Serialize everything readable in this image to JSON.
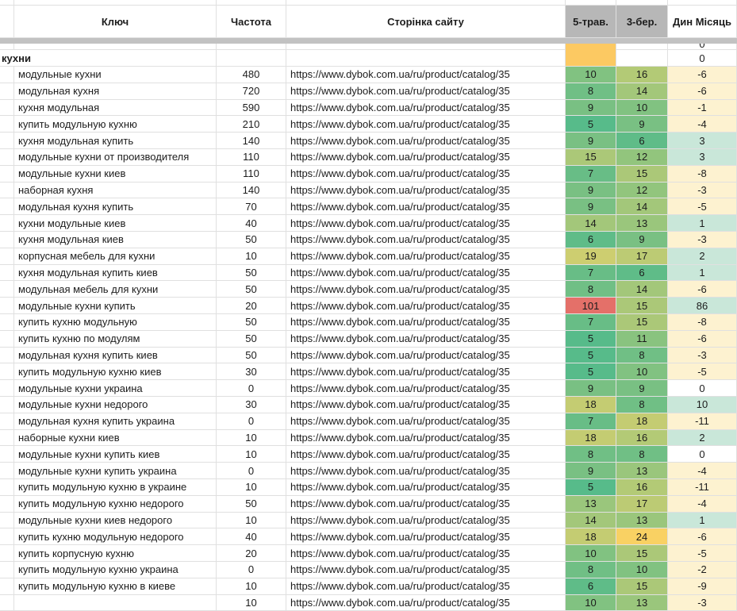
{
  "colors": {
    "header_gray": "#b7b7b7",
    "orange_highlight": "#fcc962",
    "negative_bg": "#fdf2d0",
    "positive_bg": "#c9e7d9",
    "zero_bg": "#ffffff",
    "red_alert": "#e47069",
    "grid_line": "#e0e0e0"
  },
  "table": {
    "columns": {
      "key": "Ключ",
      "freq": "Частота",
      "url": "Сторінка сайту",
      "may": "5-трав.",
      "mar": "3-бер.",
      "dyn": "Дин Місяць"
    },
    "pre_row": {
      "dyn": "0",
      "may_bg": "#fcc962"
    },
    "group_row": {
      "label": "кухни",
      "dyn": "0",
      "may_bg": "#fcc962",
      "dyn_bg": "#ffffff"
    },
    "rows": [
      {
        "key": "модульные кухни",
        "freq": "480",
        "url": "https://www.dybok.com.ua/ru/product/catalog/35",
        "may": "10",
        "mar": "16",
        "dyn": "-6",
        "may_bg": "#81c281",
        "mar_bg": "#b3ca76",
        "dyn_bg": "#fdf2d0"
      },
      {
        "key": "модульная кухня",
        "freq": "720",
        "url": "https://www.dybok.com.ua/ru/product/catalog/35",
        "may": "8",
        "mar": "14",
        "dyn": "-6",
        "may_bg": "#70bf85",
        "mar_bg": "#a3c77a",
        "dyn_bg": "#fdf2d0"
      },
      {
        "key": "кухня модульная",
        "freq": "590",
        "url": "https://www.dybok.com.ua/ru/product/catalog/35",
        "may": "9",
        "mar": "10",
        "dyn": "-1",
        "may_bg": "#79c083",
        "mar_bg": "#81c281",
        "dyn_bg": "#fdf2d0"
      },
      {
        "key": "купить модульную кухню",
        "freq": "210",
        "url": "https://www.dybok.com.ua/ru/product/catalog/35",
        "may": "5",
        "mar": "9",
        "dyn": "-4",
        "may_bg": "#57bb8a",
        "mar_bg": "#79c083",
        "dyn_bg": "#fdf2d0"
      },
      {
        "key": "кухня модульная купить",
        "freq": "140",
        "url": "https://www.dybok.com.ua/ru/product/catalog/35",
        "may": "9",
        "mar": "6",
        "dyn": "3",
        "may_bg": "#79c083",
        "mar_bg": "#5fbc88",
        "dyn_bg": "#c9e7d9"
      },
      {
        "key": "модульные кухни от производителя",
        "freq": "110",
        "url": "https://www.dybok.com.ua/ru/product/catalog/35",
        "may": "15",
        "mar": "12",
        "dyn": "3",
        "may_bg": "#abc878",
        "mar_bg": "#92c57d",
        "dyn_bg": "#c9e7d9"
      },
      {
        "key": "модульные кухни киев",
        "freq": "110",
        "url": "https://www.dybok.com.ua/ru/product/catalog/35",
        "may": "7",
        "mar": "15",
        "dyn": "-8",
        "may_bg": "#68bd86",
        "mar_bg": "#abc878",
        "dyn_bg": "#fdf2d0"
      },
      {
        "key": "наборная кухня",
        "freq": "140",
        "url": "https://www.dybok.com.ua/ru/product/catalog/35",
        "may": "9",
        "mar": "12",
        "dyn": "-3",
        "may_bg": "#79c083",
        "mar_bg": "#92c57d",
        "dyn_bg": "#fdf2d0"
      },
      {
        "key": "модульная кухня купить",
        "freq": "70",
        "url": "https://www.dybok.com.ua/ru/product/catalog/35",
        "may": "9",
        "mar": "14",
        "dyn": "-5",
        "may_bg": "#79c083",
        "mar_bg": "#a3c77a",
        "dyn_bg": "#fdf2d0"
      },
      {
        "key": "кухни модульные киев",
        "freq": "40",
        "url": "https://www.dybok.com.ua/ru/product/catalog/35",
        "may": "14",
        "mar": "13",
        "dyn": "1",
        "may_bg": "#a3c77a",
        "mar_bg": "#9ac67c",
        "dyn_bg": "#c9e7d9"
      },
      {
        "key": "кухня модульная киев",
        "freq": "50",
        "url": "https://www.dybok.com.ua/ru/product/catalog/35",
        "may": "6",
        "mar": "9",
        "dyn": "-3",
        "may_bg": "#5fbc88",
        "mar_bg": "#79c083",
        "dyn_bg": "#fdf2d0"
      },
      {
        "key": "корпусная мебель для кухни",
        "freq": "10",
        "url": "https://www.dybok.com.ua/ru/product/catalog/35",
        "may": "19",
        "mar": "17",
        "dyn": "2",
        "may_bg": "#cdce70",
        "mar_bg": "#bccb74",
        "dyn_bg": "#c9e7d9"
      },
      {
        "key": "кухня модульная купить киев",
        "freq": "50",
        "url": "https://www.dybok.com.ua/ru/product/catalog/35",
        "may": "7",
        "mar": "6",
        "dyn": "1",
        "may_bg": "#68bd86",
        "mar_bg": "#5fbc88",
        "dyn_bg": "#c9e7d9"
      },
      {
        "key": "модульная мебель для кухни",
        "freq": "50",
        "url": "https://www.dybok.com.ua/ru/product/catalog/35",
        "may": "8",
        "mar": "14",
        "dyn": "-6",
        "may_bg": "#70bf85",
        "mar_bg": "#a3c77a",
        "dyn_bg": "#fdf2d0"
      },
      {
        "key": "модульные кухни купить",
        "freq": "20",
        "url": "https://www.dybok.com.ua/ru/product/catalog/35",
        "may": "101",
        "mar": "15",
        "dyn": "86",
        "may_bg": "#e47069",
        "mar_bg": "#abc878",
        "dyn_bg": "#c9e7d9"
      },
      {
        "key": "купить кухню модульную",
        "freq": "50",
        "url": "https://www.dybok.com.ua/ru/product/catalog/35",
        "may": "7",
        "mar": "15",
        "dyn": "-8",
        "may_bg": "#68bd86",
        "mar_bg": "#abc878",
        "dyn_bg": "#fdf2d0"
      },
      {
        "key": "купить кухню по модулям",
        "freq": "50",
        "url": "https://www.dybok.com.ua/ru/product/catalog/35",
        "may": "5",
        "mar": "11",
        "dyn": "-6",
        "may_bg": "#57bb8a",
        "mar_bg": "#89c37f",
        "dyn_bg": "#fdf2d0"
      },
      {
        "key": "модульная кухня купить киев",
        "freq": "50",
        "url": "https://www.dybok.com.ua/ru/product/catalog/35",
        "may": "5",
        "mar": "8",
        "dyn": "-3",
        "may_bg": "#57bb8a",
        "mar_bg": "#70bf85",
        "dyn_bg": "#fdf2d0"
      },
      {
        "key": "купить модульную кухню киев",
        "freq": "30",
        "url": "https://www.dybok.com.ua/ru/product/catalog/35",
        "may": "5",
        "mar": "10",
        "dyn": "-5",
        "may_bg": "#57bb8a",
        "mar_bg": "#81c281",
        "dyn_bg": "#fdf2d0"
      },
      {
        "key": "модульные кухни украина",
        "freq": "0",
        "url": "https://www.dybok.com.ua/ru/product/catalog/35",
        "may": "9",
        "mar": "9",
        "dyn": "0",
        "may_bg": "#79c083",
        "mar_bg": "#79c083",
        "dyn_bg": "#ffffff"
      },
      {
        "key": "модульные кухни недорого",
        "freq": "30",
        "url": "https://www.dybok.com.ua/ru/product/catalog/35",
        "may": "18",
        "mar": "8",
        "dyn": "10",
        "may_bg": "#c4cc72",
        "mar_bg": "#70bf85",
        "dyn_bg": "#c9e7d9"
      },
      {
        "key": "модульная кухня купить украина",
        "freq": "0",
        "url": "https://www.dybok.com.ua/ru/product/catalog/35",
        "may": "7",
        "mar": "18",
        "dyn": "-11",
        "may_bg": "#68bd86",
        "mar_bg": "#c4cc72",
        "dyn_bg": "#fdf2d0"
      },
      {
        "key": "наборные кухни киев",
        "freq": "10",
        "url": "https://www.dybok.com.ua/ru/product/catalog/35",
        "may": "18",
        "mar": "16",
        "dyn": "2",
        "may_bg": "#c4cc72",
        "mar_bg": "#b3ca76",
        "dyn_bg": "#c9e7d9"
      },
      {
        "key": "модульные кухни купить киев",
        "freq": "10",
        "url": "https://www.dybok.com.ua/ru/product/catalog/35",
        "may": "8",
        "mar": "8",
        "dyn": "0",
        "may_bg": "#70bf85",
        "mar_bg": "#70bf85",
        "dyn_bg": "#ffffff"
      },
      {
        "key": "модульные кухни купить украина",
        "freq": "0",
        "url": "https://www.dybok.com.ua/ru/product/catalog/35",
        "may": "9",
        "mar": "13",
        "dyn": "-4",
        "may_bg": "#79c083",
        "mar_bg": "#9ac67c",
        "dyn_bg": "#fdf2d0"
      },
      {
        "key": "купить модульную кухню в украине",
        "freq": "10",
        "url": "https://www.dybok.com.ua/ru/product/catalog/35",
        "may": "5",
        "mar": "16",
        "dyn": "-11",
        "may_bg": "#57bb8a",
        "mar_bg": "#b3ca76",
        "dyn_bg": "#fdf2d0"
      },
      {
        "key": "купить модульную кухню недорого",
        "freq": "50",
        "url": "https://www.dybok.com.ua/ru/product/catalog/35",
        "may": "13",
        "mar": "17",
        "dyn": "-4",
        "may_bg": "#9ac67c",
        "mar_bg": "#bccb74",
        "dyn_bg": "#fdf2d0"
      },
      {
        "key": "модульные кухни киев недорого",
        "freq": "10",
        "url": "https://www.dybok.com.ua/ru/product/catalog/35",
        "may": "14",
        "mar": "13",
        "dyn": "1",
        "may_bg": "#a3c77a",
        "mar_bg": "#9ac67c",
        "dyn_bg": "#c9e7d9"
      },
      {
        "key": "купить кухню модульную недорого",
        "freq": "40",
        "url": "https://www.dybok.com.ua/ru/product/catalog/35",
        "may": "18",
        "mar": "24",
        "dyn": "-6",
        "may_bg": "#c4cc72",
        "mar_bg": "#f9d163",
        "dyn_bg": "#fdf2d0"
      },
      {
        "key": "купить корпусную кухню",
        "freq": "20",
        "url": "https://www.dybok.com.ua/ru/product/catalog/35",
        "may": "10",
        "mar": "15",
        "dyn": "-5",
        "may_bg": "#81c281",
        "mar_bg": "#abc878",
        "dyn_bg": "#fdf2d0"
      },
      {
        "key": "купить модульную кухню украина",
        "freq": "0",
        "url": "https://www.dybok.com.ua/ru/product/catalog/35",
        "may": "8",
        "mar": "10",
        "dyn": "-2",
        "may_bg": "#70bf85",
        "mar_bg": "#81c281",
        "dyn_bg": "#fdf2d0"
      },
      {
        "key": "купить модульную кухню в киеве",
        "freq": "10",
        "url": "https://www.dybok.com.ua/ru/product/catalog/35",
        "may": "6",
        "mar": "15",
        "dyn": "-9",
        "may_bg": "#5fbc88",
        "mar_bg": "#abc878",
        "dyn_bg": "#fdf2d0"
      }
    ],
    "partial_row": {
      "key": "",
      "freq": "10",
      "url": "https://www.dybok.com.ua/ru/product/catalog/35",
      "may": "10",
      "mar": "13",
      "dyn": "-3",
      "may_bg": "#81c281",
      "mar_bg": "#9ac67c",
      "dyn_bg": "#fdf2d0"
    }
  }
}
